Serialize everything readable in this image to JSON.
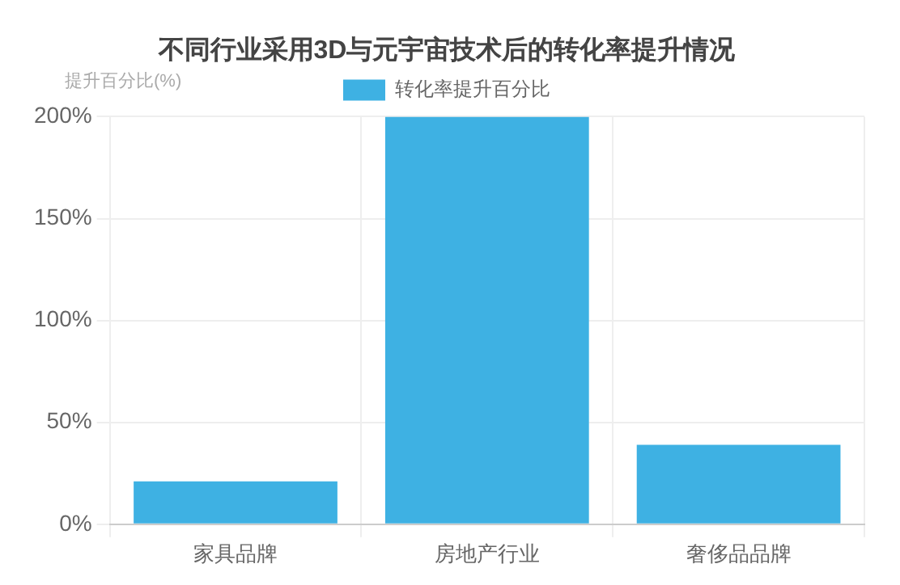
{
  "chart_data": {
    "type": "bar",
    "title": "不同行业采用3D与元宇宙技术后的转化率提升情况",
    "ylabel": "提升百分比(%)",
    "categories": [
      "家具品牌",
      "房地产行业",
      "奢侈品品牌"
    ],
    "series": [
      {
        "name": "转化率提升百分比",
        "color": "#3eb1e3",
        "values": [
          21,
          200,
          39
        ]
      }
    ],
    "ylim": [
      0,
      200
    ],
    "yticks": [
      {
        "value": 0,
        "label": "0%"
      },
      {
        "value": 50,
        "label": "50%"
      },
      {
        "value": 100,
        "label": "100%"
      },
      {
        "value": 150,
        "label": "150%"
      },
      {
        "value": 200,
        "label": "200%"
      }
    ],
    "grid": true,
    "legend": "top"
  }
}
